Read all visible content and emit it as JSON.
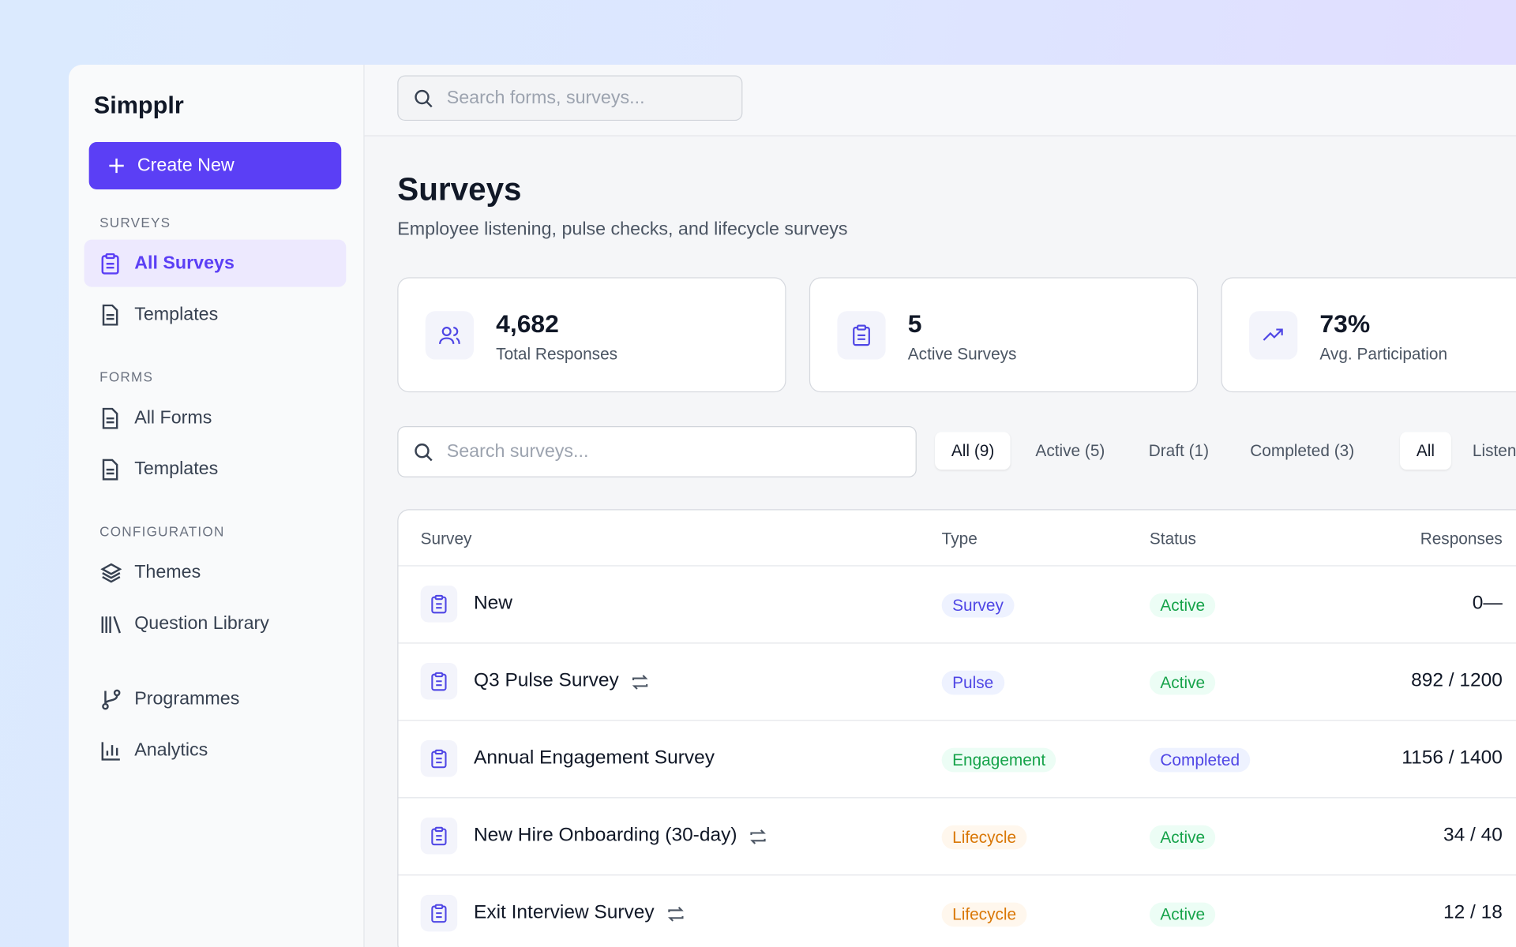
{
  "sidebar": {
    "brand": "Simpplr",
    "create_button": "Create New",
    "sections": [
      {
        "label": "SURVEYS",
        "items": [
          "All Surveys",
          "Templates"
        ]
      },
      {
        "label": "FORMS",
        "items": [
          "All Forms",
          "Templates"
        ]
      },
      {
        "label": "CONFIGURATION",
        "items": [
          "Themes",
          "Question Library"
        ]
      },
      {
        "items": [
          "Programmes",
          "Analytics"
        ]
      }
    ]
  },
  "topbar": {
    "search_placeholder": "Search forms, surveys..."
  },
  "page": {
    "title": "Surveys",
    "subtitle": "Employee listening, pulse checks, and lifecycle surveys"
  },
  "stats": [
    {
      "value": "4,682",
      "label": "Total Responses"
    },
    {
      "value": "5",
      "label": "Active Surveys"
    },
    {
      "value": "73%",
      "label": "Avg. Participation"
    }
  ],
  "filters": {
    "search_placeholder": "Search surveys...",
    "status_tabs": [
      "All (9)",
      "Active (5)",
      "Draft (1)",
      "Completed (3)"
    ],
    "type_tabs": [
      "All",
      "Listening"
    ]
  },
  "table": {
    "columns": [
      "Survey",
      "Type",
      "Status",
      "Responses"
    ],
    "rows": [
      [
        "New",
        "Survey",
        "Active",
        "0—"
      ],
      [
        "Q3 Pulse Survey",
        "Pulse",
        "Active",
        "892 / 1200"
      ],
      [
        "Annual Engagement Survey",
        "Engagement",
        "Completed",
        "1156 / 1400"
      ],
      [
        "New Hire Onboarding (30-day)",
        "Lifecycle",
        "Active",
        "34 / 40"
      ],
      [
        "Exit Interview Survey",
        "Lifecycle",
        "Active",
        "12 / 18"
      ]
    ],
    "recurring": [
      false,
      true,
      false,
      true,
      true
    ]
  }
}
